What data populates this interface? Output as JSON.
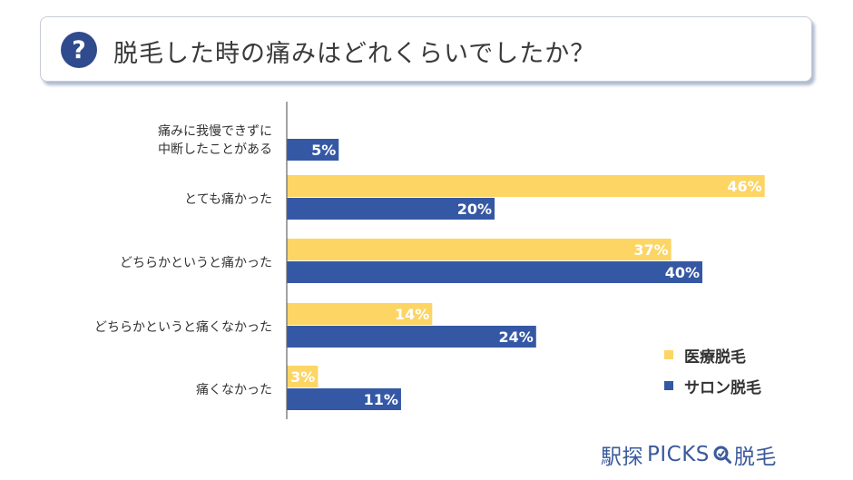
{
  "header": {
    "icon": "question-circle-icon",
    "icon_glyph": "?",
    "title": "脱毛した時の痛みはどれくらいでしたか？"
  },
  "chart_data": {
    "type": "bar",
    "orientation": "horizontal",
    "categories": [
      "痛みに我慢できずに\n中断したことがある",
      "とても痛かった",
      "どちらかというと痛かった",
      "どちらかというと痛くなかった",
      "痛くなかった"
    ],
    "series": [
      {
        "name": "医療脱毛",
        "color": "#fcd565",
        "values": [
          null,
          46,
          37,
          14,
          3
        ]
      },
      {
        "name": "サロン脱毛",
        "color": "#3558a5",
        "values": [
          5,
          20,
          40,
          24,
          11
        ]
      }
    ],
    "unit": "%",
    "xlim": [
      0,
      50
    ],
    "grid": false,
    "legend_position": "bottom-right"
  },
  "brand": {
    "name_left": "駅探",
    "name_mid": "PICKS",
    "icon": "magnifier-icon",
    "name_right": "脱毛",
    "color": "#3a5a9c"
  }
}
